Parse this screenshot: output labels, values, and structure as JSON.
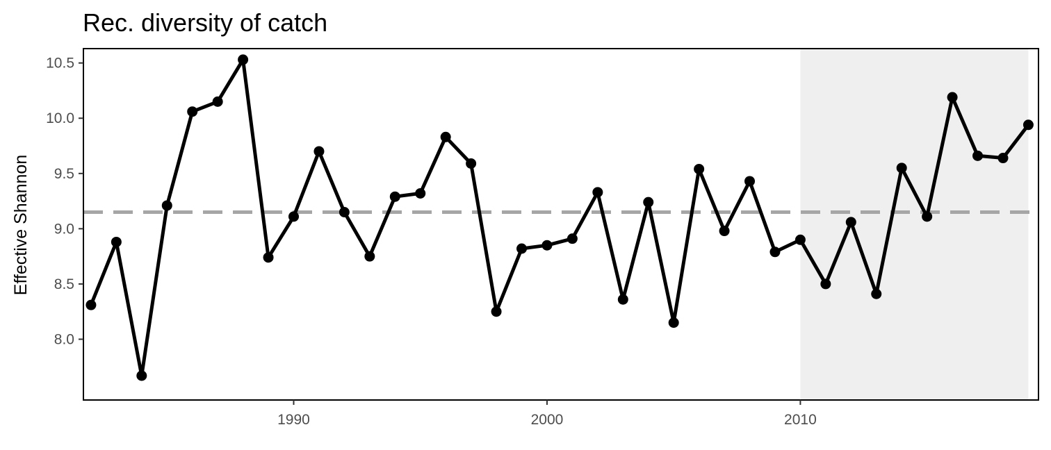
{
  "chart_data": {
    "type": "line",
    "title": "Rec. diversity of catch",
    "xlabel": "",
    "ylabel": "Effective Shannon",
    "xlim": [
      1981.7,
      2019.4
    ],
    "ylim": [
      7.45,
      10.63
    ],
    "x_ticks": [
      1990,
      2000,
      2010
    ],
    "y_ticks": [
      8.0,
      8.5,
      9.0,
      9.5,
      10.0,
      10.5
    ],
    "y_tick_labels": [
      "8.0",
      "8.5",
      "9.0",
      "9.5",
      "10.0",
      "10.5"
    ],
    "grid": false,
    "legend": "none",
    "mean_line": 9.15,
    "shaded_region": [
      2010,
      2019
    ],
    "series": [
      {
        "x": [
          1982,
          1983,
          1984,
          1985,
          1986,
          1987,
          1988,
          1989,
          1990,
          1991,
          1992,
          1993,
          1994,
          1995,
          1996,
          1997,
          1998,
          1999,
          2000,
          2001,
          2002,
          2003,
          2004,
          2005,
          2006,
          2007,
          2008,
          2009,
          2010,
          2011,
          2012,
          2013,
          2014,
          2015,
          2016,
          2017,
          2018,
          2019
        ],
        "values": [
          8.31,
          8.88,
          7.67,
          9.21,
          10.06,
          10.15,
          10.53,
          8.74,
          9.11,
          9.7,
          9.15,
          8.75,
          9.29,
          9.32,
          9.83,
          9.59,
          8.25,
          8.82,
          8.85,
          8.91,
          9.33,
          8.36,
          9.24,
          8.15,
          9.54,
          8.98,
          9.43,
          8.79,
          8.9,
          8.5,
          9.06,
          8.41,
          9.55,
          9.11,
          10.19,
          9.66,
          9.64,
          9.94
        ]
      }
    ],
    "colors": {
      "line": "#000000",
      "mean_line": "#a6a6a6",
      "shade": "#efefef",
      "panel_border": "#000000",
      "tick_text": "#4d4d4d"
    }
  }
}
